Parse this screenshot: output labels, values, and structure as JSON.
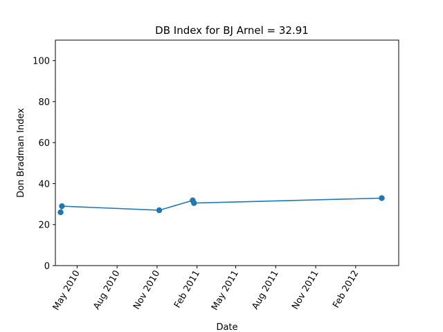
{
  "chart_data": {
    "type": "line",
    "title": "DB Index for BJ Arnel = 32.91",
    "xlabel": "Date",
    "ylabel": "Don Bradman Index",
    "ylim": [
      0,
      110
    ],
    "xlim": [
      "2010-03-12",
      "2012-05-10"
    ],
    "yticks": [
      0,
      20,
      40,
      60,
      80,
      100
    ],
    "xticks": [
      {
        "date": "2010-05-01",
        "label": "May 2010"
      },
      {
        "date": "2010-08-01",
        "label": "Aug 2010"
      },
      {
        "date": "2010-11-01",
        "label": "Nov 2010"
      },
      {
        "date": "2011-02-01",
        "label": "Feb 2011"
      },
      {
        "date": "2011-05-01",
        "label": "May 2011"
      },
      {
        "date": "2011-08-01",
        "label": "Aug 2011"
      },
      {
        "date": "2011-11-01",
        "label": "Nov 2011"
      },
      {
        "date": "2012-02-01",
        "label": "Feb 2012"
      }
    ],
    "grid": false,
    "color": "#1f77b4",
    "series": [
      {
        "x": [
          "2010-03-24",
          "2010-03-27",
          "2010-11-06",
          "2011-01-22",
          "2011-01-25",
          "2012-04-01"
        ],
        "values": [
          26.0,
          29.0,
          27.0,
          31.8,
          30.5,
          32.91
        ]
      }
    ]
  }
}
